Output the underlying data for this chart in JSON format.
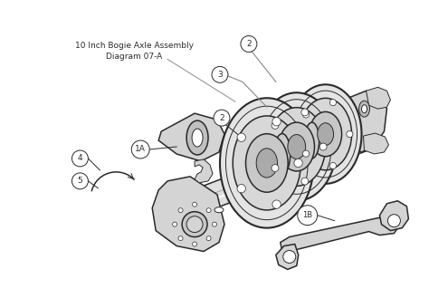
{
  "title_line1": "10 Inch Bogie Axle Assembly",
  "title_line2": "Diagram 07-A",
  "title_fontsize": 6.5,
  "lc": "#2a2a2a",
  "bg": "#ffffff",
  "shaft_fill": "#e0e0e0",
  "bracket_fill": "#d4d4d4",
  "wheel_fill": "#d8d8d8",
  "hub_fill": "#c0c0c0",
  "dark_fill": "#888888"
}
